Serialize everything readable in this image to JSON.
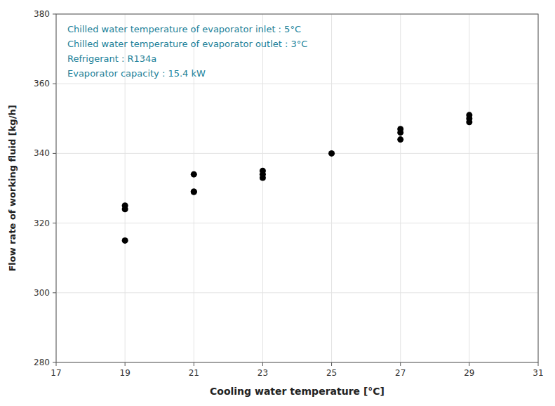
{
  "chart_data": {
    "type": "scatter",
    "x_label": "Cooling water temperature [°C]",
    "y_label": "Flow rate of working fluid [kg/h]",
    "annotations": [
      "Chilled water temperature of evaporator inlet : 5°C",
      "Chilled water temperature of evaporator outlet : 3°C",
      "Refrigerant : R134a",
      "Evaporator capacity : 15.4 kW"
    ],
    "x": [
      19,
      19,
      19,
      21,
      21,
      21,
      23,
      23,
      23,
      25,
      27,
      27,
      27,
      29,
      29,
      29
    ],
    "values": [
      315,
      324,
      325,
      329,
      329,
      334,
      333,
      334,
      335,
      340,
      344,
      346,
      347,
      349,
      350,
      351
    ],
    "color": "#000000",
    "xlim": [
      17,
      31
    ],
    "ylim": [
      280,
      380
    ],
    "xticks": [
      17,
      19,
      21,
      23,
      25,
      27,
      29,
      31
    ],
    "yticks": [
      280,
      300,
      320,
      340,
      360,
      380
    ],
    "grid": true
  }
}
